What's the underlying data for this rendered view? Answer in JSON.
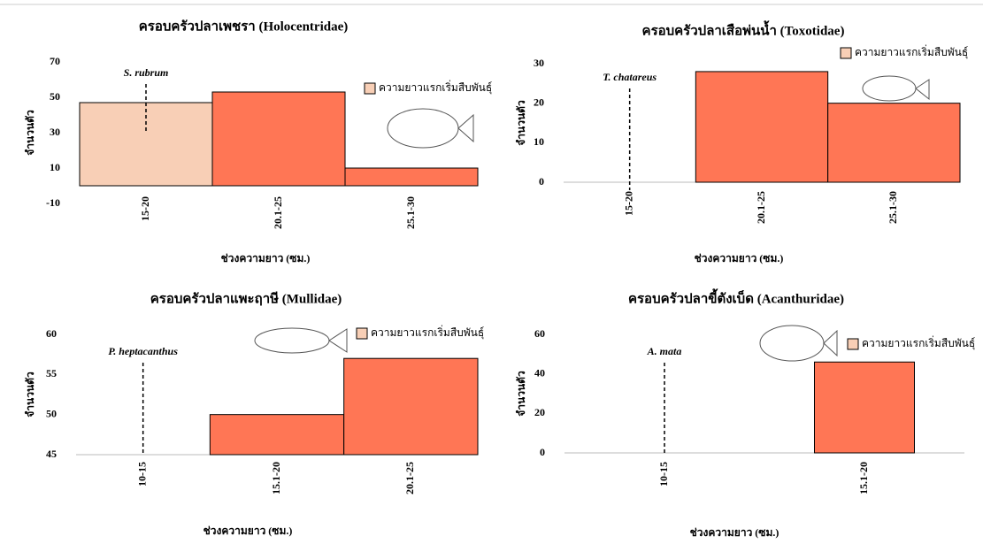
{
  "chart_data": [
    {
      "type": "bar",
      "title": "ครอบครัวปลาเพชรา (Holocentridae)",
      "y_label": "จำนวนตัว",
      "x_label": "ช่วงความยาว (ซม.)",
      "categories": [
        "15-20",
        "20.1-25",
        "25.1-30"
      ],
      "values": [
        47,
        53,
        10
      ],
      "colors": [
        "#f8cfb6",
        "#ff7655",
        "#ff7655"
      ],
      "ylim": [
        -10,
        70
      ],
      "yticks": [
        -10,
        10,
        30,
        50,
        70
      ],
      "legend": {
        "label": "ความยาวแรกเริ่มสืบพันธุ์",
        "color": "#f8cfb6"
      },
      "marker": {
        "label": "S. rubrum",
        "category_index": 0
      }
    },
    {
      "type": "bar",
      "title": "ครอบครัวปลาเสือพ่นน้ำ (Toxotidae)",
      "y_label": "จำนวนตัว",
      "x_label": "ช่วงความยาว (ซม.)",
      "categories": [
        "15-20",
        "20.1-25",
        "25.1-30"
      ],
      "values": [
        0,
        28,
        20
      ],
      "colors": [
        "#ff7655",
        "#ff7655",
        "#ff7655"
      ],
      "ylim": [
        0,
        30
      ],
      "yticks": [
        0,
        10,
        20,
        30
      ],
      "legend": {
        "label": "ความยาวแรกเริ่มสืบพันธุ์",
        "color": "#f8cfb6"
      },
      "marker": {
        "label": "T. chatareus",
        "category_index": 0
      }
    },
    {
      "type": "bar",
      "title": "ครอบครัวปลาแพะฤาษี (Mullidae)",
      "y_label": "จำนวนตัว",
      "x_label": "ช่วงความยาว (ซม.)",
      "categories": [
        "10-15",
        "15.1-20",
        "20.1-25"
      ],
      "values": [
        null,
        50,
        57
      ],
      "colors": [
        "#ff7655",
        "#ff7655",
        "#ff7655"
      ],
      "ylim": [
        45,
        60
      ],
      "yticks": [
        45,
        50,
        55,
        60
      ],
      "legend": {
        "label": "ความยาวแรกเริ่มสืบพันธุ์",
        "color": "#f8cfb6"
      },
      "marker": {
        "label": "P. heptacanthus",
        "category_index": 0
      }
    },
    {
      "type": "bar",
      "title": "ครอบครัวปลาขี้ตังเบ็ด (Acanthuridae)",
      "y_label": "จำนวนตัว",
      "x_label": "ช่วงความยาว (ซม.)",
      "categories": [
        "10-15",
        "15.1-20"
      ],
      "values": [
        0,
        46
      ],
      "colors": [
        "#ff7655",
        "#ff7655"
      ],
      "ylim": [
        0,
        60
      ],
      "yticks": [
        0,
        20,
        40,
        60
      ],
      "legend": {
        "label": "ความยาวแรกเริ่มสืบพันธุ์",
        "color": "#f8cfb6"
      },
      "marker": {
        "label": "A. mata",
        "category_index": 0
      }
    }
  ]
}
